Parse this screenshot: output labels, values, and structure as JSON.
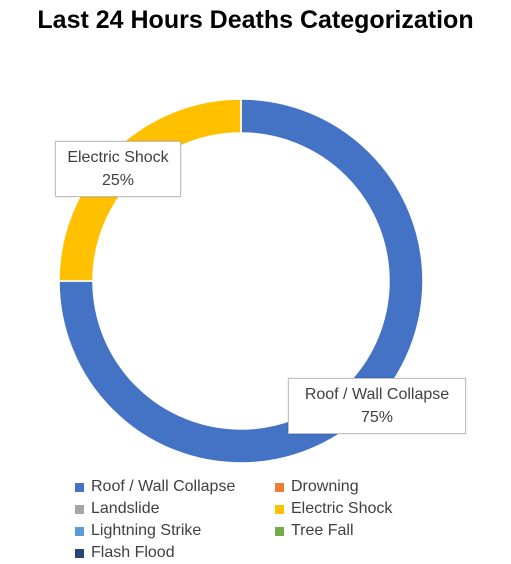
{
  "chart_data": {
    "type": "pie",
    "title": "Last 24 Hours Deaths Categorization",
    "donut": true,
    "categories": [
      "Roof / Wall Collapse",
      "Drowning",
      "Landslide",
      "Electric Shock",
      "Lightning Strike",
      "Tree Fall",
      "Flash Flood"
    ],
    "values": [
      75,
      0,
      0,
      25,
      0,
      0,
      0
    ],
    "colors": [
      "#4472C4",
      "#ED7D31",
      "#A5A5A5",
      "#FFC000",
      "#5B9BD5",
      "#70AD47",
      "#264478"
    ],
    "data_labels": [
      {
        "category": "Electric Shock",
        "value": "25%"
      },
      {
        "category": "Roof / Wall Collapse",
        "value": "75%"
      }
    ],
    "legend_position": "bottom"
  }
}
